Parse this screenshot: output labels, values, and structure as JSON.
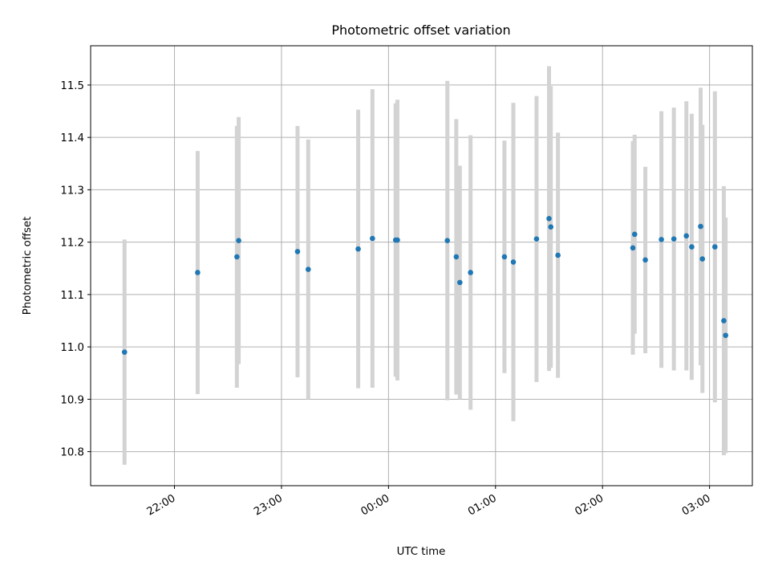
{
  "chart_data": {
    "type": "scatter",
    "title": "Photometric offset variation",
    "xlabel": "UTC time",
    "ylabel": "Photometric offset",
    "x_reference_date": "",
    "x_ticks": [
      "22:00",
      "23:00",
      "00:00",
      "01:00",
      "02:00",
      "03:00"
    ],
    "y_ticks": [
      "10.8",
      "10.9",
      "11.0",
      "11.1",
      "11.2",
      "11.3",
      "11.4",
      "11.5"
    ],
    "ylim": [
      10.735,
      11.575
    ],
    "xlim": [
      "21:13",
      "03:24"
    ],
    "grid": true,
    "point_color": "#1f77b4",
    "errorbar_color": "#d3d3d3",
    "series": [
      {
        "points": [
          {
            "x": "21:32",
            "y": 10.99,
            "yerr": 0.215
          },
          {
            "x": "22:13",
            "y": 11.142,
            "yerr": 0.232
          },
          {
            "x": "22:35",
            "y": 11.172,
            "yerr": 0.25
          },
          {
            "x": "22:36",
            "y": 11.203,
            "yerr": 0.236
          },
          {
            "x": "23:09",
            "y": 11.182,
            "yerr": 0.24
          },
          {
            "x": "23:15",
            "y": 11.148,
            "yerr": 0.248
          },
          {
            "x": "23:43",
            "y": 11.187,
            "yerr": 0.266
          },
          {
            "x": "23:51",
            "y": 11.207,
            "yerr": 0.285
          },
          {
            "x": "00:04",
            "y": 11.204,
            "yerr": 0.261
          },
          {
            "x": "00:05",
            "y": 11.204,
            "yerr": 0.268
          },
          {
            "x": "00:33",
            "y": 11.203,
            "yerr": 0.305
          },
          {
            "x": "00:38",
            "y": 11.172,
            "yerr": 0.263
          },
          {
            "x": "00:40",
            "y": 11.123,
            "yerr": 0.223
          },
          {
            "x": "00:46",
            "y": 11.142,
            "yerr": 0.262
          },
          {
            "x": "01:05",
            "y": 11.172,
            "yerr": 0.222
          },
          {
            "x": "01:10",
            "y": 11.162,
            "yerr": 0.304
          },
          {
            "x": "01:23",
            "y": 11.206,
            "yerr": 0.273
          },
          {
            "x": "01:30",
            "y": 11.245,
            "yerr": 0.291
          },
          {
            "x": "01:31",
            "y": 11.229,
            "yerr": 0.269
          },
          {
            "x": "01:35",
            "y": 11.175,
            "yerr": 0.234
          },
          {
            "x": "02:17",
            "y": 11.189,
            "yerr": 0.204
          },
          {
            "x": "02:18",
            "y": 11.215,
            "yerr": 0.19
          },
          {
            "x": "02:24",
            "y": 11.166,
            "yerr": 0.178
          },
          {
            "x": "02:33",
            "y": 11.205,
            "yerr": 0.245
          },
          {
            "x": "02:40",
            "y": 11.206,
            "yerr": 0.251
          },
          {
            "x": "02:47",
            "y": 11.212,
            "yerr": 0.257
          },
          {
            "x": "02:50",
            "y": 11.191,
            "yerr": 0.254
          },
          {
            "x": "02:55",
            "y": 11.23,
            "yerr": 0.265
          },
          {
            "x": "02:56",
            "y": 11.168,
            "yerr": 0.256
          },
          {
            "x": "03:03",
            "y": 11.191,
            "yerr": 0.297
          },
          {
            "x": "03:08",
            "y": 11.05,
            "yerr": 0.257
          },
          {
            "x": "03:09",
            "y": 11.022,
            "yerr": 0.225
          }
        ]
      }
    ]
  }
}
